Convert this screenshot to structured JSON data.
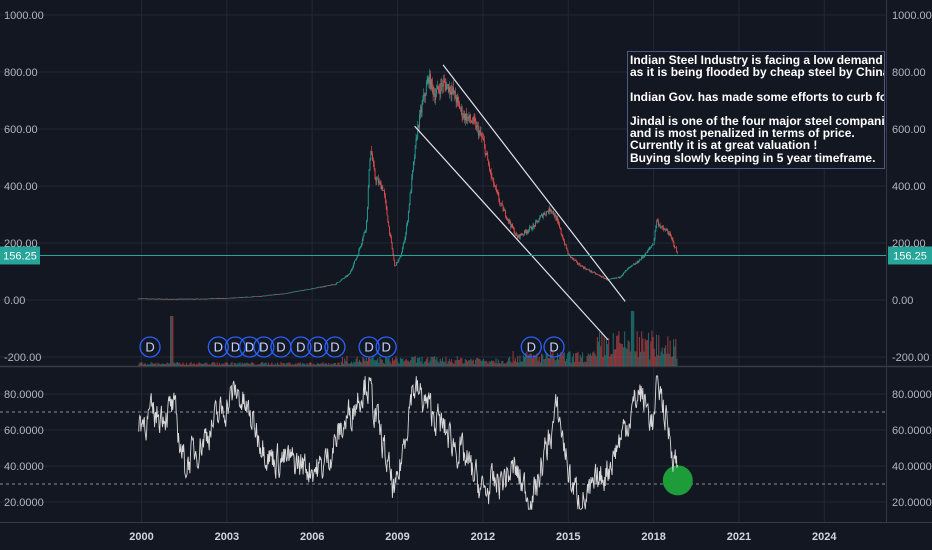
{
  "chart_data": [
    {
      "type": "candlestick",
      "price_unit_labels": [
        "1000.00",
        "800.00",
        "600.00",
        "400.00",
        "200.00",
        "0.00",
        "-200.00"
      ],
      "y_ticks": [
        1000,
        800,
        600,
        400,
        200,
        0,
        -200
      ],
      "ylim": [
        -230,
        1030
      ],
      "last_price": 156.25,
      "last_price_label": "156.25",
      "price_path": [
        [
          1999.9,
          5
        ],
        [
          2001.0,
          3
        ],
        [
          2002.0,
          4
        ],
        [
          2003.0,
          6
        ],
        [
          2004.0,
          12
        ],
        [
          2005.0,
          22
        ],
        [
          2006.0,
          40
        ],
        [
          2006.8,
          55
        ],
        [
          2007.3,
          90
        ],
        [
          2007.6,
          160
        ],
        [
          2007.9,
          260
        ],
        [
          2008.05,
          540
        ],
        [
          2008.2,
          430
        ],
        [
          2008.5,
          390
        ],
        [
          2008.7,
          250
        ],
        [
          2008.9,
          120
        ],
        [
          2009.1,
          150
        ],
        [
          2009.3,
          240
        ],
        [
          2009.5,
          420
        ],
        [
          2009.7,
          600
        ],
        [
          2009.9,
          700
        ],
        [
          2010.1,
          780
        ],
        [
          2010.3,
          720
        ],
        [
          2010.6,
          760
        ],
        [
          2010.9,
          740
        ],
        [
          2011.3,
          650
        ],
        [
          2011.7,
          620
        ],
        [
          2012.0,
          560
        ],
        [
          2012.3,
          430
        ],
        [
          2012.6,
          340
        ],
        [
          2012.9,
          280
        ],
        [
          2013.2,
          220
        ],
        [
          2013.5,
          240
        ],
        [
          2013.8,
          260
        ],
        [
          2014.1,
          300
        ],
        [
          2014.4,
          320
        ],
        [
          2014.6,
          280
        ],
        [
          2014.8,
          220
        ],
        [
          2015.0,
          160
        ],
        [
          2015.3,
          130
        ],
        [
          2015.6,
          110
        ],
        [
          2016.0,
          90
        ],
        [
          2016.4,
          70
        ],
        [
          2016.8,
          80
        ],
        [
          2017.1,
          110
        ],
        [
          2017.4,
          130
        ],
        [
          2017.7,
          160
        ],
        [
          2018.0,
          200
        ],
        [
          2018.1,
          280
        ],
        [
          2018.3,
          250
        ],
        [
          2018.5,
          240
        ],
        [
          2018.7,
          200
        ],
        [
          2018.85,
          156.25
        ]
      ],
      "dividend_marker_label": "D",
      "dividend_years": [
        2000.3,
        2002.7,
        2003.3,
        2003.8,
        2004.3,
        2004.9,
        2005.6,
        2006.2,
        2006.8,
        2008.0,
        2008.6,
        2013.7,
        2014.5
      ]
    },
    {
      "type": "line",
      "y_tick_labels": [
        "80.0000",
        "60.0000",
        "40.0000",
        "20.0000"
      ],
      "y_ticks": [
        80,
        60,
        40,
        20
      ],
      "ylim": [
        13,
        92
      ],
      "upper_band": 70,
      "lower_band": 30,
      "x_ticks": [
        2000,
        2003,
        2006,
        2009,
        2012,
        2015,
        2018,
        2021,
        2024
      ],
      "x_tick_labels": [
        "2000",
        "2003",
        "2006",
        "2009",
        "2012",
        "2015",
        "2018",
        "2021",
        "2024"
      ]
    }
  ],
  "annotation": {
    "lines": [
      "Indian Steel Industry is facing a low demand",
      "as it is being flooded by cheap steel by China, Russia",
      "",
      "Indian Gov. has made some efforts to curb foreign s",
      "",
      "Jindal is one of the four major steel companies",
      "and is most penalized in terms of price.",
      "Currently it is at great valuation !",
      "Buying slowly keeping in 5 year timeframe."
    ]
  },
  "colors": {
    "background": "#131722",
    "grid": "#232736",
    "text": "#b2b5be",
    "up": "#26a69a",
    "down": "#ef5350",
    "price_line": "#26a69a",
    "channel": "#e0e3eb",
    "rsi_line": "#d8d8d8",
    "dividend": "#2962ff",
    "highlight": "#1e9c3a"
  }
}
